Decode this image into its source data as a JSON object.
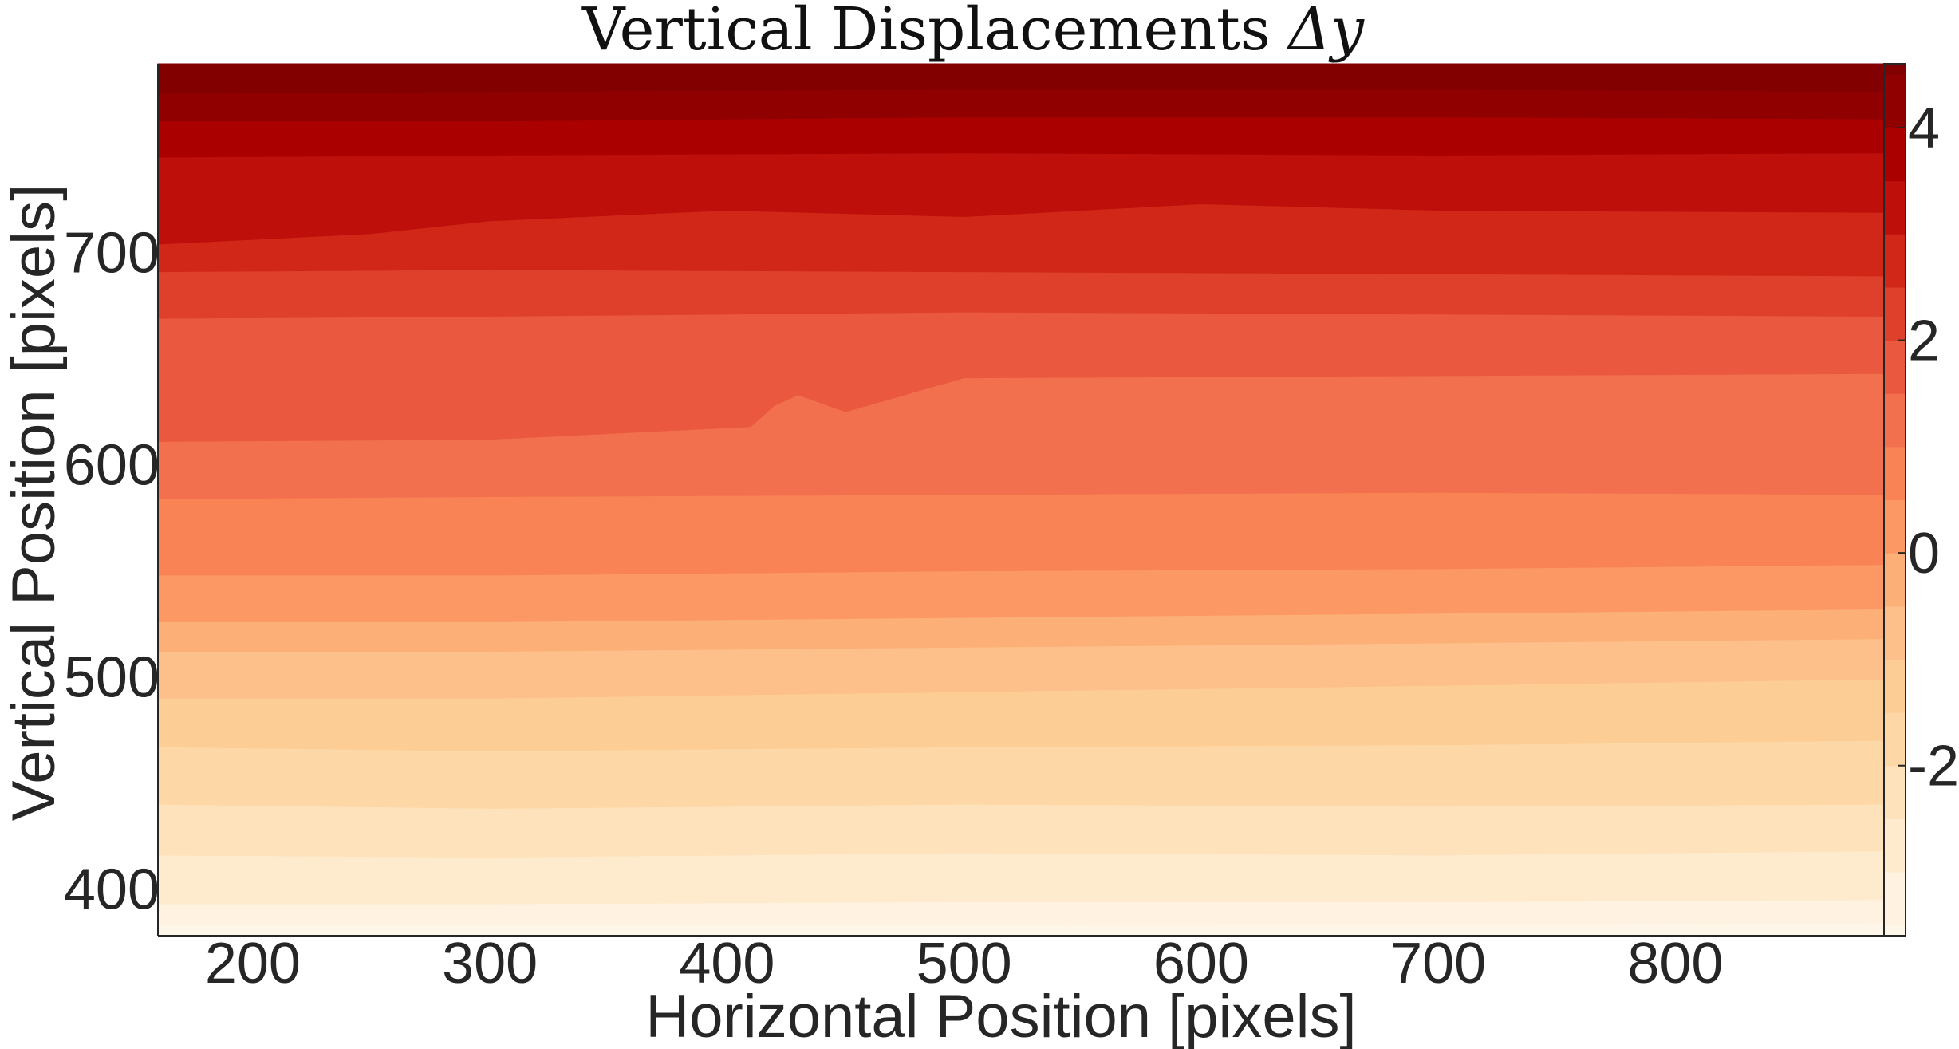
{
  "chart_data": {
    "type": "contourf",
    "title": "Vertical Displacements",
    "title_math": "Δy",
    "xlabel": "Horizontal Position [pixels]",
    "ylabel": "Vertical Position [pixels]",
    "xlim": [
      160,
      888
    ],
    "ylim": [
      378,
      789
    ],
    "x_ticks": [
      200,
      300,
      400,
      500,
      600,
      700,
      800
    ],
    "y_ticks": [
      400,
      500,
      600,
      700
    ],
    "colorbar": {
      "range": [
        -3.6,
        4.6
      ],
      "ticks": [
        4,
        2,
        0,
        -2
      ],
      "tick_labels": [
        "4",
        "2",
        "0",
        "-2"
      ],
      "colormap": "OrRd"
    },
    "level_step": 0.5,
    "levels": [
      -3.5,
      -3.0,
      -2.5,
      -2.0,
      -1.5,
      -1.0,
      -0.5,
      0.0,
      0.5,
      1.0,
      1.5,
      2.0,
      2.5,
      3.0,
      3.5,
      4.0,
      4.5
    ],
    "band_colors": [
      "#fff7ec",
      "#fee8c8",
      "#fdd49e",
      "#fdbb84",
      "#fc8d59",
      "#ef6548",
      "#d7301f",
      "#b30000",
      "#7f0000"
    ],
    "contour_lines": [
      {
        "level": -3.5,
        "x": [
          160,
          888
        ],
        "y": [
          383,
          384
        ]
      },
      {
        "level": -3.0,
        "x": [
          160,
          300,
          500,
          700,
          888
        ],
        "y": [
          393,
          393,
          394,
          394,
          395
        ]
      },
      {
        "level": -2.5,
        "x": [
          160,
          300,
          500,
          700,
          888
        ],
        "y": [
          416,
          415,
          417,
          416,
          418
        ]
      },
      {
        "level": -2.0,
        "x": [
          160,
          300,
          500,
          700,
          888
        ],
        "y": [
          440,
          438,
          440,
          439,
          440
        ]
      },
      {
        "level": -1.5,
        "x": [
          160,
          300,
          500,
          700,
          888
        ],
        "y": [
          467,
          465,
          467,
          468,
          470
        ]
      },
      {
        "level": -1.0,
        "x": [
          160,
          300,
          500,
          700,
          888
        ],
        "y": [
          490,
          490,
          493,
          496,
          499
        ]
      },
      {
        "level": -0.5,
        "x": [
          160,
          300,
          500,
          700,
          888
        ],
        "y": [
          512,
          512,
          514,
          516,
          518
        ]
      },
      {
        "level": 0.0,
        "x": [
          160,
          300,
          500,
          700,
          888
        ],
        "y": [
          526,
          526,
          528,
          530,
          532
        ]
      },
      {
        "level": 0.5,
        "x": [
          160,
          300,
          500,
          700,
          888
        ],
        "y": [
          548,
          548,
          550,
          551,
          553
        ]
      },
      {
        "level": 1.0,
        "x": [
          160,
          300,
          500,
          700,
          888
        ],
        "y": [
          584,
          585,
          586,
          587,
          586
        ]
      },
      {
        "level": 1.5,
        "x": [
          160,
          300,
          410,
          420,
          430,
          450,
          500,
          700,
          888
        ],
        "y": [
          611,
          612,
          618,
          628,
          633,
          625,
          641,
          642,
          643
        ]
      },
      {
        "level": 2.0,
        "x": [
          160,
          300,
          500,
          700,
          888
        ],
        "y": [
          669,
          670,
          672,
          671,
          670
        ]
      },
      {
        "level": 2.5,
        "x": [
          160,
          300,
          500,
          700,
          888
        ],
        "y": [
          691,
          692,
          691,
          690,
          689
        ]
      },
      {
        "level": 3.0,
        "x": [
          160,
          250,
          300,
          400,
          500,
          600,
          700,
          888
        ],
        "y": [
          704,
          709,
          715,
          720,
          717,
          723,
          720,
          719
        ]
      },
      {
        "level": 3.5,
        "x": [
          160,
          300,
          500,
          700,
          888
        ],
        "y": [
          745,
          746,
          747,
          746,
          747
        ]
      },
      {
        "level": 4.0,
        "x": [
          160,
          300,
          500,
          700,
          888
        ],
        "y": [
          762,
          762,
          764,
          764,
          763
        ]
      },
      {
        "level": 4.5,
        "x": [
          160,
          300,
          500,
          700,
          888
        ],
        "y": [
          775,
          776,
          777,
          777,
          776
        ]
      }
    ]
  }
}
